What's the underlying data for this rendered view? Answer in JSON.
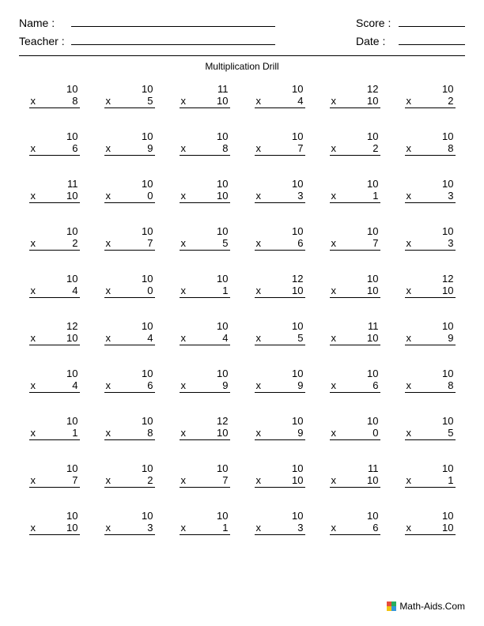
{
  "header": {
    "name_label": "Name :",
    "teacher_label": "Teacher :",
    "score_label": "Score :",
    "date_label": "Date :"
  },
  "title": "Multiplication Drill",
  "operator": "x",
  "footer": {
    "text": "Math-Aids.Com",
    "icon_colors": [
      "#e74c3c",
      "#27ae60",
      "#f1c40f",
      "#3498db"
    ]
  },
  "problems": [
    [
      {
        "t": "10",
        "b": "8"
      },
      {
        "t": "10",
        "b": "5"
      },
      {
        "t": "11",
        "b": "10"
      },
      {
        "t": "10",
        "b": "4"
      },
      {
        "t": "12",
        "b": "10"
      },
      {
        "t": "10",
        "b": "2"
      }
    ],
    [
      {
        "t": "10",
        "b": "6"
      },
      {
        "t": "10",
        "b": "9"
      },
      {
        "t": "10",
        "b": "8"
      },
      {
        "t": "10",
        "b": "7"
      },
      {
        "t": "10",
        "b": "2"
      },
      {
        "t": "10",
        "b": "8"
      }
    ],
    [
      {
        "t": "11",
        "b": "10"
      },
      {
        "t": "10",
        "b": "0"
      },
      {
        "t": "10",
        "b": "10"
      },
      {
        "t": "10",
        "b": "3"
      },
      {
        "t": "10",
        "b": "1"
      },
      {
        "t": "10",
        "b": "3"
      }
    ],
    [
      {
        "t": "10",
        "b": "2"
      },
      {
        "t": "10",
        "b": "7"
      },
      {
        "t": "10",
        "b": "5"
      },
      {
        "t": "10",
        "b": "6"
      },
      {
        "t": "10",
        "b": "7"
      },
      {
        "t": "10",
        "b": "3"
      }
    ],
    [
      {
        "t": "10",
        "b": "4"
      },
      {
        "t": "10",
        "b": "0"
      },
      {
        "t": "10",
        "b": "1"
      },
      {
        "t": "12",
        "b": "10"
      },
      {
        "t": "10",
        "b": "10"
      },
      {
        "t": "12",
        "b": "10"
      }
    ],
    [
      {
        "t": "12",
        "b": "10"
      },
      {
        "t": "10",
        "b": "4"
      },
      {
        "t": "10",
        "b": "4"
      },
      {
        "t": "10",
        "b": "5"
      },
      {
        "t": "11",
        "b": "10"
      },
      {
        "t": "10",
        "b": "9"
      }
    ],
    [
      {
        "t": "10",
        "b": "4"
      },
      {
        "t": "10",
        "b": "6"
      },
      {
        "t": "10",
        "b": "9"
      },
      {
        "t": "10",
        "b": "9"
      },
      {
        "t": "10",
        "b": "6"
      },
      {
        "t": "10",
        "b": "8"
      }
    ],
    [
      {
        "t": "10",
        "b": "1"
      },
      {
        "t": "10",
        "b": "8"
      },
      {
        "t": "12",
        "b": "10"
      },
      {
        "t": "10",
        "b": "9"
      },
      {
        "t": "10",
        "b": "0"
      },
      {
        "t": "10",
        "b": "5"
      }
    ],
    [
      {
        "t": "10",
        "b": "7"
      },
      {
        "t": "10",
        "b": "2"
      },
      {
        "t": "10",
        "b": "7"
      },
      {
        "t": "10",
        "b": "10"
      },
      {
        "t": "11",
        "b": "10"
      },
      {
        "t": "10",
        "b": "1"
      }
    ],
    [
      {
        "t": "10",
        "b": "10"
      },
      {
        "t": "10",
        "b": "3"
      },
      {
        "t": "10",
        "b": "1"
      },
      {
        "t": "10",
        "b": "3"
      },
      {
        "t": "10",
        "b": "6"
      },
      {
        "t": "10",
        "b": "10"
      }
    ]
  ]
}
